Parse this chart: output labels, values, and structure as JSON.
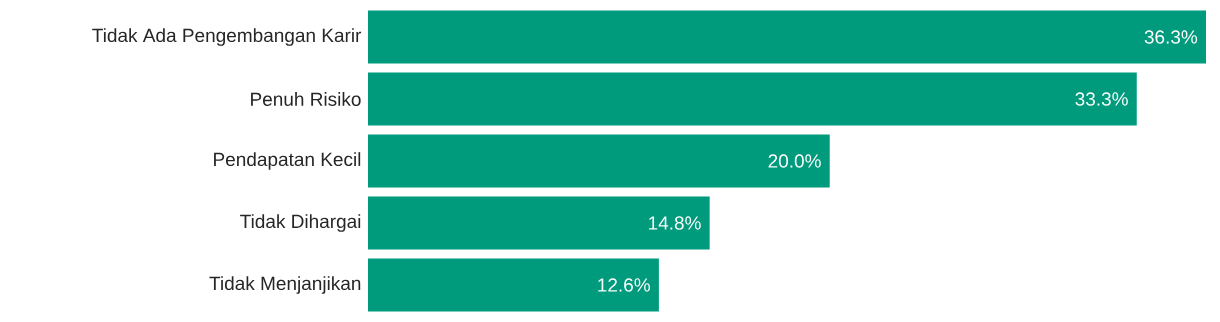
{
  "chart_data": {
    "type": "bar",
    "orientation": "horizontal",
    "categories": [
      "Tidak Ada Pengembangan Karir",
      "Penuh Risiko",
      "Pendapatan Kecil",
      "Tidak Dihargai",
      "Tidak Menjanjikan"
    ],
    "values": [
      36.3,
      33.3,
      20.0,
      14.8,
      12.6
    ],
    "value_labels": [
      "36.3%",
      "33.3%",
      "20.0%",
      "14.8%",
      "12.6%"
    ],
    "color": "#009b7d"
  }
}
